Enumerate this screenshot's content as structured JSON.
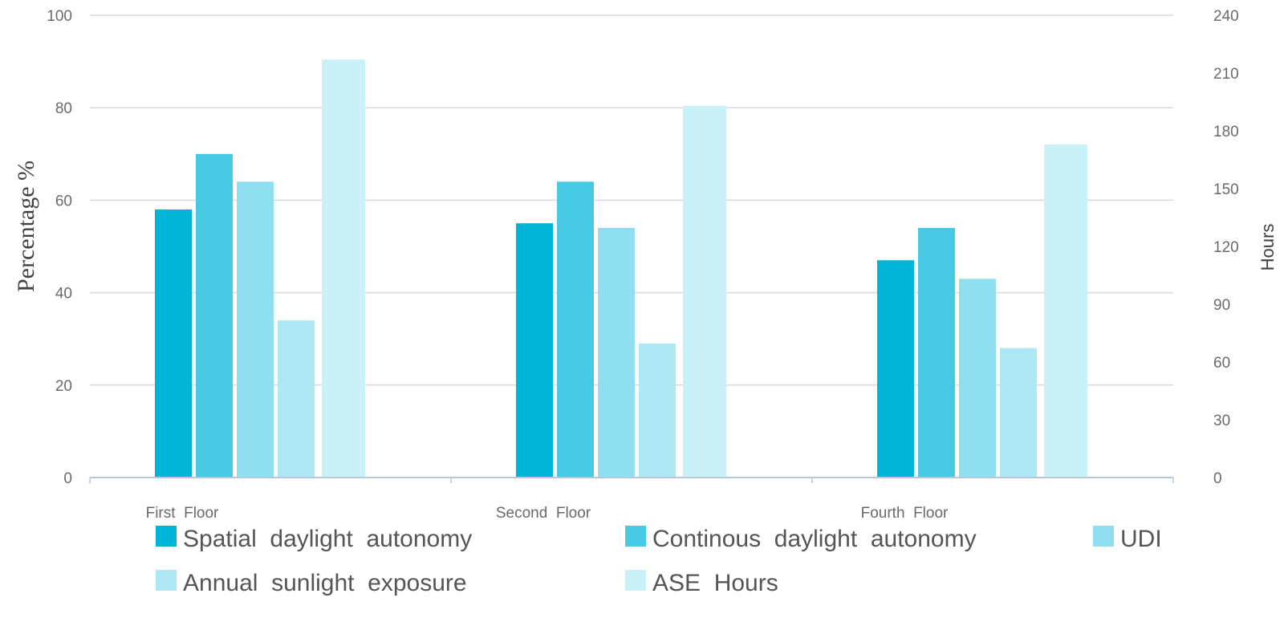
{
  "chart_data": {
    "type": "bar",
    "categories": [
      "First  Floor",
      "Second  Floor",
      "Fourth  Floor"
    ],
    "series": [
      {
        "name": "Spatial  daylight  autonomy",
        "axis": "left",
        "color": "#00b4d8",
        "values": [
          58,
          55,
          47
        ]
      },
      {
        "name": "Continous  daylight  autonomy",
        "axis": "left",
        "color": "#48c9e3",
        "values": [
          70,
          64,
          54
        ]
      },
      {
        "name": "UDI",
        "axis": "left",
        "color": "#90dff0",
        "values": [
          64,
          54,
          43
        ]
      },
      {
        "name": "Annual  sunlight  exposure",
        "axis": "left",
        "color": "#ade8f4",
        "values": [
          34,
          29,
          28
        ]
      },
      {
        "name": "ASE  Hours",
        "axis": "right",
        "color": "#caf0f8",
        "values": [
          217,
          193,
          173
        ]
      }
    ],
    "y_left": {
      "label": "Percentage %",
      "lim": [
        0,
        100
      ],
      "ticks": [
        "0",
        "20",
        "40",
        "60",
        "80",
        "100"
      ]
    },
    "y_right": {
      "label": "Hours",
      "lim": [
        0,
        240
      ],
      "ticks": [
        "0",
        "30",
        "60",
        "90",
        "120",
        "150",
        "180",
        "210",
        "240"
      ]
    },
    "grid": true,
    "legend_position": "bottom"
  }
}
